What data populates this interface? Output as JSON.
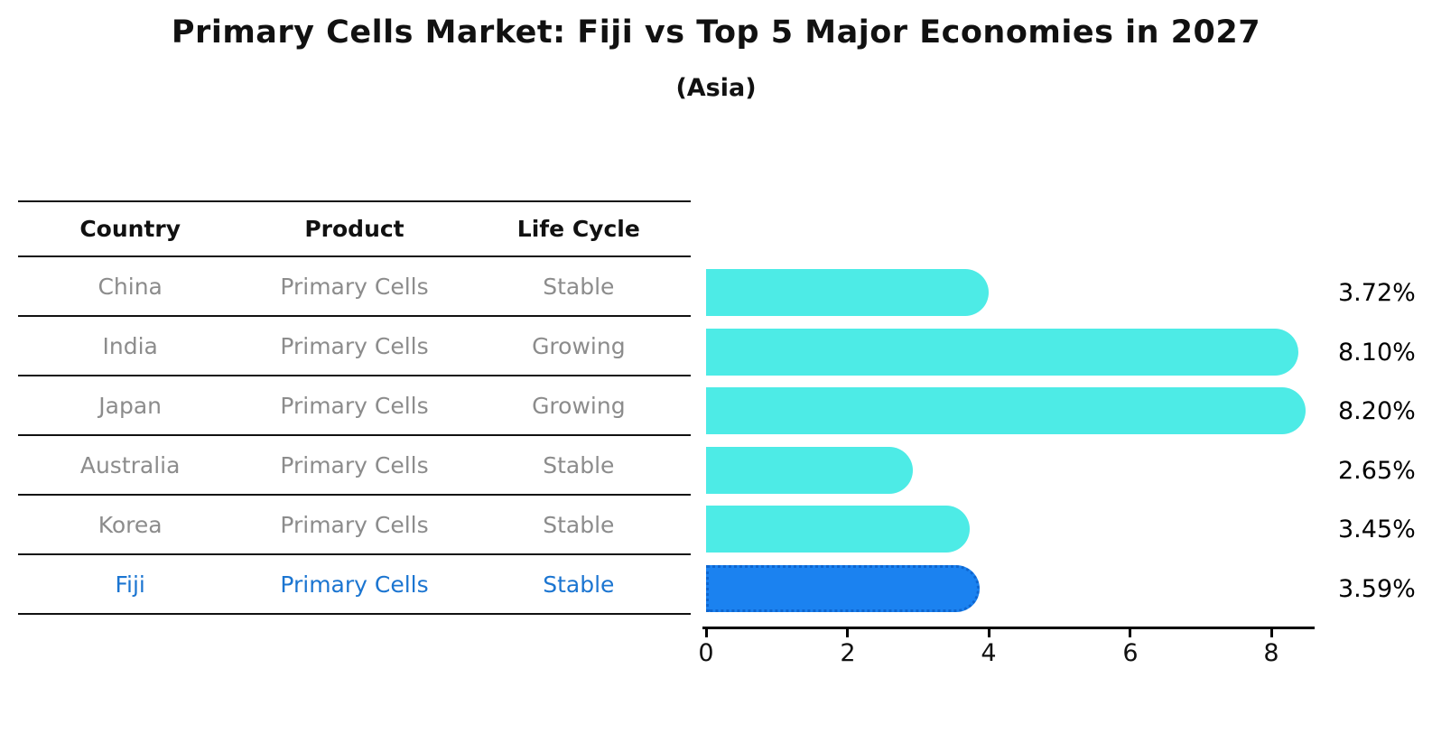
{
  "header": {
    "title": "Primary Cells Market: Fiji vs Top 5 Major Economies in 2027",
    "subtitle": "(Asia)"
  },
  "table": {
    "headers": {
      "country": "Country",
      "product": "Product",
      "life_cycle": "Life Cycle"
    },
    "rows": [
      {
        "country": "China",
        "product": "Primary Cells",
        "life_cycle": "Stable",
        "highlight": false
      },
      {
        "country": "India",
        "product": "Primary Cells",
        "life_cycle": "Growing",
        "highlight": false
      },
      {
        "country": "Japan",
        "product": "Primary Cells",
        "life_cycle": "Growing",
        "highlight": false
      },
      {
        "country": "Australia",
        "product": "Primary Cells",
        "life_cycle": "Stable",
        "highlight": false
      },
      {
        "country": "Korea",
        "product": "Primary Cells",
        "life_cycle": "Stable",
        "highlight": false
      },
      {
        "country": "Fiji",
        "product": "Primary Cells",
        "life_cycle": "Stable",
        "highlight": true
      }
    ]
  },
  "chart_data": {
    "type": "bar",
    "orientation": "horizontal",
    "title": "Primary Cells Market: Fiji vs Top 5 Major Economies in 2027",
    "subtitle": "(Asia)",
    "categories": [
      "China",
      "India",
      "Japan",
      "Australia",
      "Korea",
      "Fiji"
    ],
    "values": [
      3.72,
      8.1,
      8.2,
      2.65,
      3.45,
      3.59
    ],
    "value_labels": [
      "3.72%",
      "8.10%",
      "8.20%",
      "2.65%",
      "3.45%",
      "3.59%"
    ],
    "x_ticks": [
      0,
      2,
      4,
      6,
      8
    ],
    "xlim": [
      0,
      8.6
    ],
    "grid": false,
    "legend": "none",
    "highlight_index": 5,
    "colors": {
      "bar_default": "#4debe6",
      "bar_highlight": "#1b82f0",
      "bar_highlight_border": "#0e66d0",
      "highlight_text": "#1b75d1",
      "table_text": "#8c8c8c",
      "header_text": "#111111",
      "axis": "#000000"
    }
  }
}
